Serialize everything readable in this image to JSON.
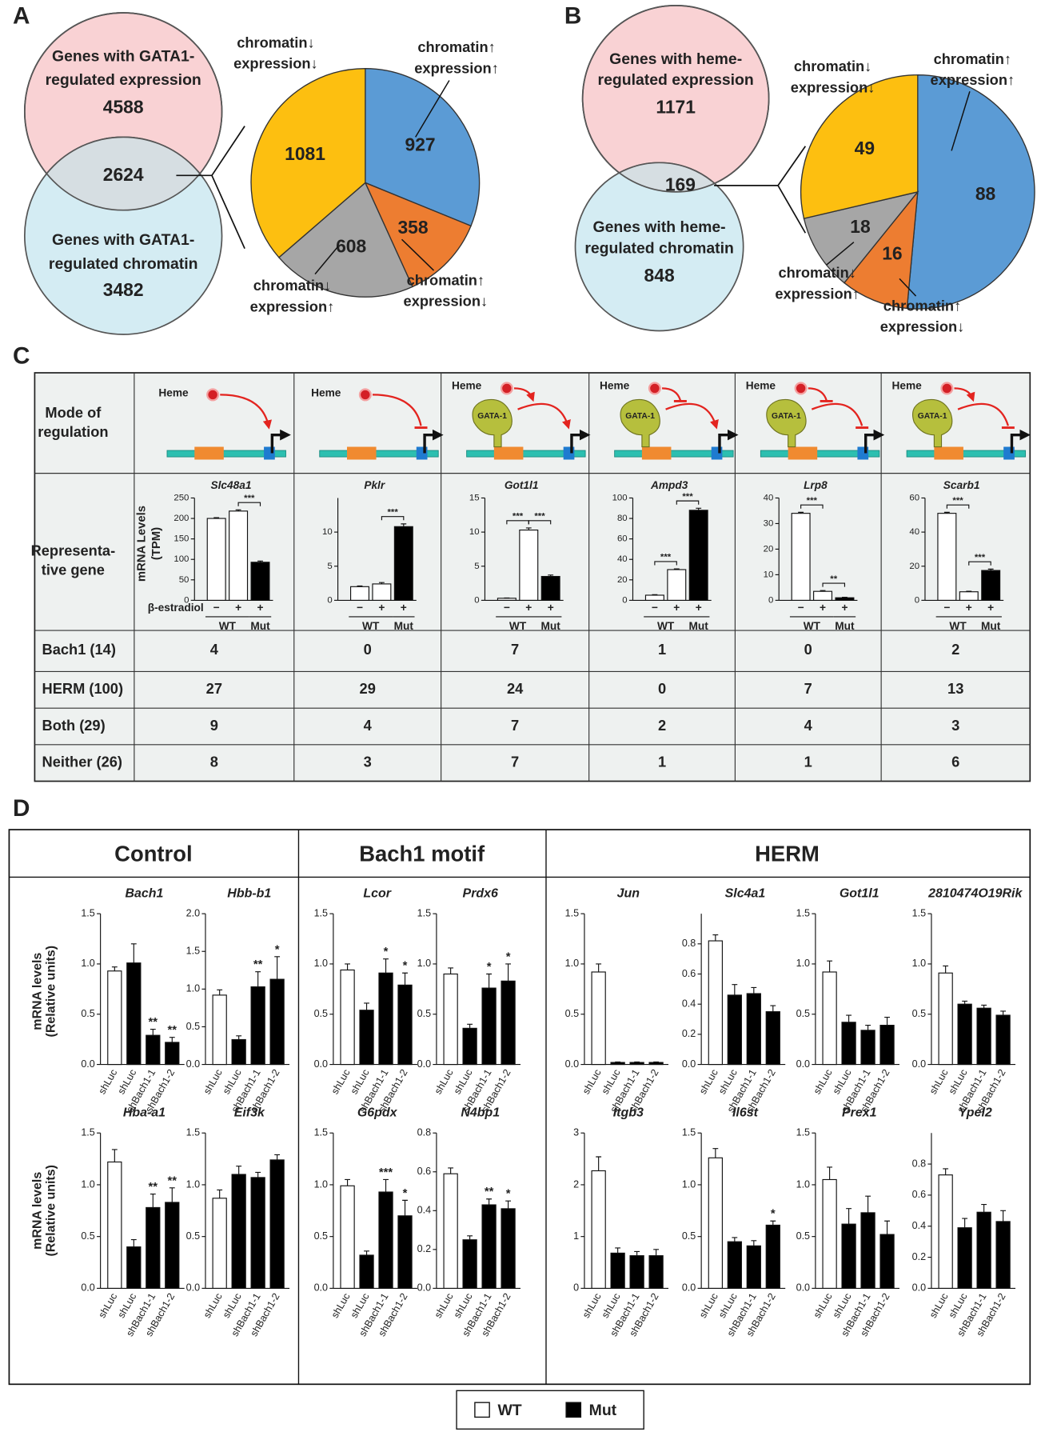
{
  "figure": {
    "panel_labels": [
      "A",
      "B",
      "C",
      "D"
    ],
    "A": {
      "venn": {
        "top": {
          "lines": [
            "Genes with GATA1-",
            "regulated expression"
          ],
          "count": 4588
        },
        "overlap": 2624,
        "bottom": {
          "lines": [
            "Genes with GATA1-",
            "regulated chromatin"
          ],
          "count": 3482
        }
      },
      "pie": {
        "type": "pie",
        "slices": [
          {
            "labels": [
              "chromatin↑",
              "expression↑"
            ],
            "value": 927,
            "color": "#5b9bd5"
          },
          {
            "labels": [
              "chromatin↑",
              "expression↓"
            ],
            "value": 358,
            "color": "#ed7d31"
          },
          {
            "labels": [
              "chromatin↓",
              "expression↑"
            ],
            "value": 608,
            "color": "#a6a6a6"
          },
          {
            "labels": [
              "chromatin↓",
              "expression↓"
            ],
            "value": 1081,
            "color": "#fdbf10"
          }
        ]
      }
    },
    "B": {
      "venn": {
        "top": {
          "lines": [
            "Genes with heme-",
            "regulated expression"
          ],
          "count": 1171
        },
        "overlap": 169,
        "bottom": {
          "lines": [
            "Genes with heme-",
            "regulated chromatin"
          ],
          "count": 848
        }
      },
      "pie": {
        "type": "pie",
        "slices": [
          {
            "labels": [
              "chromatin↑",
              "expression↑"
            ],
            "value": 88,
            "color": "#5b9bd5"
          },
          {
            "labels": [
              "chromatin↑",
              "expression↓"
            ],
            "value": 16,
            "color": "#ed7d31"
          },
          {
            "labels": [
              "chromatin↓",
              "expression↑"
            ],
            "value": 18,
            "color": "#a6a6a6"
          },
          {
            "labels": [
              "chromatin↓",
              "expression↓"
            ],
            "value": 49,
            "color": "#fdbf10"
          }
        ]
      }
    },
    "C": {
      "row_heads": {
        "mode": [
          "Mode of",
          "regulation"
        ],
        "gene": [
          "Representa-",
          "tive gene"
        ]
      },
      "heme": "Heme",
      "gata": "GATA-1",
      "y_label": [
        "mRNA Levels",
        "(TPM)"
      ],
      "treatment": "β-estradiol",
      "treatment_marks": [
        "−",
        "+",
        "+"
      ],
      "groups": [
        "WT",
        "Mut"
      ],
      "bar_colors": [
        "#ffffff",
        "#ffffff",
        "#000000"
      ],
      "genes": [
        {
          "gene": "Slc48a1",
          "ylim": [
            0,
            250
          ],
          "yticks": [
            0,
            50,
            100,
            150,
            200,
            250
          ],
          "values": [
            200,
            218,
            93
          ],
          "errors": [
            2,
            3,
            3
          ],
          "brackets": [
            null,
            "***"
          ]
        },
        {
          "gene": "Pklr",
          "ylim": [
            0,
            15
          ],
          "yticks": [
            0,
            5,
            10
          ],
          "values": [
            2,
            2.4,
            10.8
          ],
          "errors": [
            0.1,
            0.2,
            0.4
          ],
          "brackets": [
            null,
            "***"
          ]
        },
        {
          "gene": "Got1l1",
          "ylim": [
            0,
            15
          ],
          "yticks": [
            0,
            5,
            10,
            15
          ],
          "values": [
            0.3,
            10.3,
            3.5
          ],
          "errors": [
            0.05,
            0.3,
            0.2
          ],
          "brackets": [
            "***",
            "***"
          ]
        },
        {
          "gene": "Ampd3",
          "ylim": [
            0,
            100
          ],
          "yticks": [
            0,
            20,
            40,
            60,
            80,
            100
          ],
          "values": [
            5,
            30,
            88
          ],
          "errors": [
            0.5,
            0.7,
            2
          ],
          "brackets": [
            "***",
            "***"
          ]
        },
        {
          "gene": "Lrp8",
          "ylim": [
            0,
            40
          ],
          "yticks": [
            0,
            10,
            20,
            30,
            40
          ],
          "values": [
            34,
            3.5,
            1
          ],
          "errors": [
            0.4,
            0.3,
            0.2
          ],
          "brackets": [
            "***",
            "**"
          ]
        },
        {
          "gene": "Scarb1",
          "ylim": [
            0,
            60
          ],
          "yticks": [
            0,
            20,
            40,
            60
          ],
          "values": [
            51,
            5,
            17.5
          ],
          "errors": [
            0.6,
            0.3,
            0.8
          ],
          "brackets": [
            "***",
            "***"
          ]
        }
      ],
      "count_rows": [
        {
          "label": "Bach1 (14)",
          "values": [
            4,
            0,
            7,
            1,
            0,
            2
          ]
        },
        {
          "label": "HERM (100)",
          "values": [
            27,
            29,
            24,
            0,
            7,
            13
          ]
        },
        {
          "label": "Both (29)",
          "values": [
            9,
            4,
            7,
            2,
            4,
            3
          ]
        },
        {
          "label": "Neither (26)",
          "values": [
            8,
            3,
            7,
            1,
            1,
            6
          ]
        }
      ]
    },
    "D": {
      "y_label": [
        "mRNA levels",
        "(Relative units)"
      ],
      "categories": [
        "shLuc",
        "shLuc",
        "shBach1-1",
        "shBach1-2"
      ],
      "bar_colors": [
        "#ffffff",
        "#000000",
        "#000000",
        "#000000"
      ],
      "legend": [
        {
          "name": "WT",
          "color": "#ffffff"
        },
        {
          "name": "Mut",
          "color": "#000000"
        }
      ],
      "groups": [
        {
          "title": "Control",
          "charts": [
            {
              "gene": "Bach1",
              "ylim": [
                0,
                1.5
              ],
              "yticks": [
                {
                  "value": 0,
                  "label": "0.0"
                },
                0.5,
                {
                  "value": 1,
                  "label": "1.0"
                },
                1.5
              ],
              "values": [
                0.93,
                1.01,
                0.29,
                0.22
              ],
              "errors": [
                0.04,
                0.19,
                0.06,
                0.05
              ],
              "stars": [
                null,
                null,
                "**",
                "**"
              ]
            },
            {
              "gene": "Hbb-b1",
              "ylim": [
                0,
                2
              ],
              "yticks": [
                {
                  "value": 0,
                  "label": "0.0"
                },
                0.5,
                {
                  "value": 1,
                  "label": "1.0"
                },
                1.5,
                {
                  "value": 2,
                  "label": "2.0"
                }
              ],
              "values": [
                0.92,
                0.33,
                1.03,
                1.13
              ],
              "errors": [
                0.07,
                0.05,
                0.2,
                0.3
              ],
              "stars": [
                null,
                null,
                "**",
                "*"
              ]
            },
            {
              "gene": "Hba-a1",
              "ylim": [
                0,
                1.5
              ],
              "yticks": [
                {
                  "value": 0,
                  "label": "0.0"
                },
                0.5,
                {
                  "value": 1,
                  "label": "1.0"
                },
                1.5
              ],
              "values": [
                1.22,
                0.4,
                0.78,
                0.83
              ],
              "errors": [
                0.12,
                0.07,
                0.13,
                0.14
              ],
              "stars": [
                null,
                null,
                "**",
                "**"
              ]
            },
            {
              "gene": "Eif3k",
              "ylim": [
                0,
                1.5
              ],
              "yticks": [
                {
                  "value": 0,
                  "label": "0.0"
                },
                0.5,
                {
                  "value": 1,
                  "label": "1.0"
                },
                1.5
              ],
              "values": [
                0.87,
                1.1,
                1.07,
                1.24
              ],
              "errors": [
                0.08,
                0.08,
                0.05,
                0.05
              ],
              "stars": [
                null,
                null,
                null,
                null
              ]
            }
          ]
        },
        {
          "title": "Bach1 motif",
          "charts": [
            {
              "gene": "Lcor",
              "ylim": [
                0,
                1.5
              ],
              "yticks": [
                {
                  "value": 0,
                  "label": "0.0"
                },
                0.5,
                {
                  "value": 1,
                  "label": "1.0"
                },
                1.5
              ],
              "values": [
                0.94,
                0.54,
                0.91,
                0.79
              ],
              "errors": [
                0.06,
                0.07,
                0.14,
                0.12
              ],
              "stars": [
                null,
                null,
                "*",
                "*"
              ]
            },
            {
              "gene": "Prdx6",
              "ylim": [
                0,
                1.5
              ],
              "yticks": [
                {
                  "value": 0,
                  "label": "0.0"
                },
                0.5,
                {
                  "value": 1,
                  "label": "1.0"
                },
                1.5
              ],
              "values": [
                0.9,
                0.36,
                0.76,
                0.83
              ],
              "errors": [
                0.06,
                0.04,
                0.14,
                0.17
              ],
              "stars": [
                null,
                null,
                "*",
                "*"
              ]
            },
            {
              "gene": "G6pdx",
              "ylim": [
                0,
                1.5
              ],
              "yticks": [
                {
                  "value": 0,
                  "label": "0.0"
                },
                0.5,
                {
                  "value": 1,
                  "label": "1.0"
                },
                1.5
              ],
              "values": [
                0.99,
                0.32,
                0.93,
                0.7
              ],
              "errors": [
                0.06,
                0.04,
                0.12,
                0.15
              ],
              "stars": [
                null,
                null,
                "***",
                "*"
              ]
            },
            {
              "gene": "N4bp1",
              "ylim": [
                0,
                0.8
              ],
              "yticks": [
                {
                  "value": 0,
                  "label": "0.0"
                },
                0.2,
                0.4,
                0.6,
                0.8
              ],
              "values": [
                0.59,
                0.25,
                0.43,
                0.41
              ],
              "errors": [
                0.03,
                0.02,
                0.03,
                0.04
              ],
              "stars": [
                null,
                null,
                "**",
                "*"
              ]
            }
          ]
        },
        {
          "title": "HERM",
          "charts": [
            {
              "gene": "Jun",
              "ylim": [
                0,
                1.5
              ],
              "yticks": [
                {
                  "value": 0,
                  "label": "0.0"
                },
                0.5,
                {
                  "value": 1,
                  "label": "1.0"
                },
                1.5
              ],
              "values": [
                0.92,
                0.02,
                0.02,
                0.02
              ],
              "errors": [
                0.08,
                0.005,
                0.005,
                0.005
              ],
              "stars": [
                null,
                null,
                null,
                null
              ]
            },
            {
              "gene": "Slc4a1",
              "ylim": [
                0,
                1
              ],
              "yticks": [
                {
                  "value": 0,
                  "label": "0.0"
                },
                0.2,
                0.4,
                0.6,
                0.8
              ],
              "values": [
                0.82,
                0.46,
                0.47,
                0.35
              ],
              "errors": [
                0.04,
                0.07,
                0.04,
                0.04
              ],
              "stars": [
                null,
                null,
                null,
                null
              ]
            },
            {
              "gene": "Got1l1",
              "ylim": [
                0,
                1.5
              ],
              "yticks": [
                {
                  "value": 0,
                  "label": "0.0"
                },
                0.5,
                {
                  "value": 1,
                  "label": "1.0"
                },
                1.5
              ],
              "values": [
                0.92,
                0.42,
                0.34,
                0.39
              ],
              "errors": [
                0.11,
                0.07,
                0.05,
                0.08
              ],
              "stars": [
                null,
                null,
                null,
                null
              ]
            },
            {
              "gene": "2810474O19Rik",
              "ylim": [
                0,
                1.5
              ],
              "yticks": [
                {
                  "value": 0,
                  "label": "0.0"
                },
                0.5,
                {
                  "value": 1,
                  "label": "1.0"
                },
                1.5
              ],
              "values": [
                0.91,
                0.6,
                0.56,
                0.49
              ],
              "errors": [
                0.07,
                0.03,
                0.03,
                0.04
              ],
              "stars": [
                null,
                null,
                null,
                null
              ]
            },
            {
              "gene": "Itgb3",
              "ylim": [
                0,
                3
              ],
              "yticks": [
                0,
                1,
                2,
                3
              ],
              "values": [
                2.27,
                0.68,
                0.63,
                0.63
              ],
              "errors": [
                0.27,
                0.1,
                0.08,
                0.12
              ],
              "stars": [
                null,
                null,
                null,
                null
              ]
            },
            {
              "gene": "Il6st",
              "ylim": [
                0,
                1.5
              ],
              "yticks": [
                {
                  "value": 0,
                  "label": "0.0"
                },
                0.5,
                {
                  "value": 1,
                  "label": "1.0"
                },
                1.5
              ],
              "values": [
                1.26,
                0.45,
                0.41,
                0.61
              ],
              "errors": [
                0.09,
                0.04,
                0.05,
                0.04
              ],
              "stars": [
                null,
                null,
                null,
                "*"
              ]
            },
            {
              "gene": "Prex1",
              "ylim": [
                0,
                1.5
              ],
              "yticks": [
                {
                  "value": 0,
                  "label": "0.0"
                },
                0.5,
                {
                  "value": 1,
                  "label": "1.0"
                },
                1.5
              ],
              "values": [
                1.05,
                0.62,
                0.73,
                0.52
              ],
              "errors": [
                0.12,
                0.15,
                0.16,
                0.13
              ],
              "stars": [
                null,
                null,
                null,
                null
              ]
            },
            {
              "gene": "Ypel2",
              "ylim": [
                0,
                1
              ],
              "yticks": [
                {
                  "value": 0,
                  "label": "0.0"
                },
                0.2,
                0.4,
                0.6,
                0.8
              ],
              "values": [
                0.73,
                0.39,
                0.49,
                0.43
              ],
              "errors": [
                0.04,
                0.06,
                0.05,
                0.07
              ],
              "stars": [
                null,
                null,
                null,
                null
              ]
            }
          ]
        }
      ]
    }
  }
}
